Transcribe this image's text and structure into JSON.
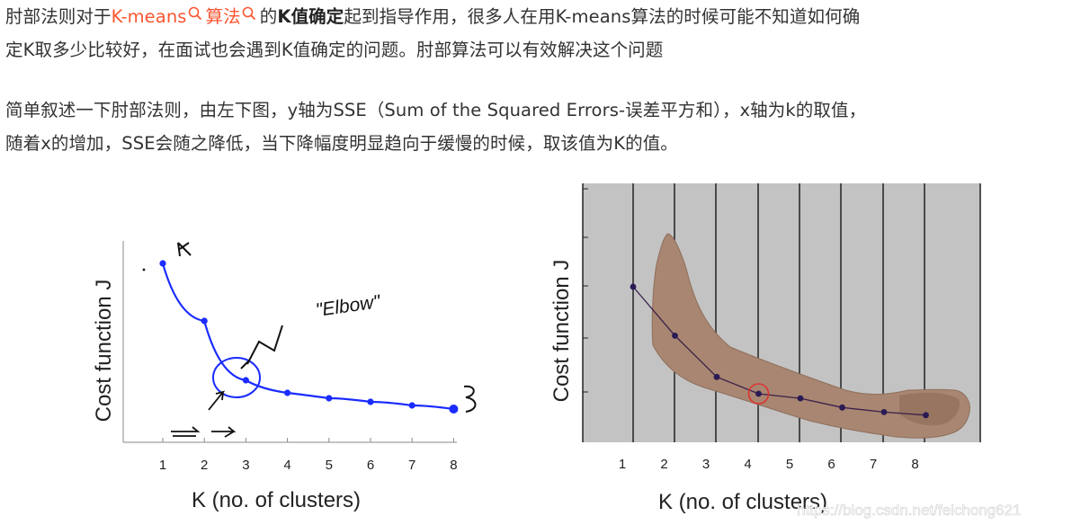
{
  "article": {
    "p1": {
      "prefix": "肘部法则对于",
      "link1": "K-means",
      "link2": "算法",
      "middle": "的",
      "bold": "K值确定",
      "rest_line1": "起到指导作用，很多人在用K-means算法的时候可能不知道如何确",
      "line2": "定K取多少比较好，在面试也会遇到K值确定的问题。肘部算法可以有效解决这个问题"
    },
    "p2": {
      "line1": "简单叙述一下肘部法则，由左下图，y轴为SSE（Sum of the Squared Errors-误差平方和），x轴为k的取值，",
      "line2": "随着x的增加，SSE会随之降低，当下降幅度明显趋向于缓慢的时候，取该值为K的值。"
    },
    "link_color": "#fc5531"
  },
  "figure_left": {
    "ylabel": "Cost function J",
    "xlabel": "K (no. of clusters)",
    "annotation": "\"Elbow\"",
    "line_color": "#1a2cff",
    "chart_data": {
      "type": "line",
      "x": [
        1,
        2,
        3,
        4,
        5,
        6,
        7,
        8
      ],
      "y_relative": [
        1.0,
        0.68,
        0.35,
        0.28,
        0.25,
        0.23,
        0.21,
        0.19
      ],
      "xticks": [
        "1",
        "2",
        "3",
        "4",
        "5",
        "6",
        "7",
        "8"
      ],
      "elbow_at": 3
    }
  },
  "figure_right": {
    "ylabel": "Cost function J",
    "xlabel": "K (no. of clusters)",
    "watermark": "https://blog.csdn.net/feichong621",
    "chart_data": {
      "type": "line",
      "x": [
        1,
        2,
        3,
        4,
        5,
        6,
        7,
        8
      ],
      "y_relative": [
        1.0,
        0.68,
        0.41,
        0.3,
        0.27,
        0.21,
        0.18,
        0.16
      ],
      "xticks": [
        "1",
        "2",
        "3",
        "4",
        "5",
        "6",
        "7",
        "8"
      ],
      "elbow_at": 4,
      "background": "#c3c3c3"
    }
  }
}
